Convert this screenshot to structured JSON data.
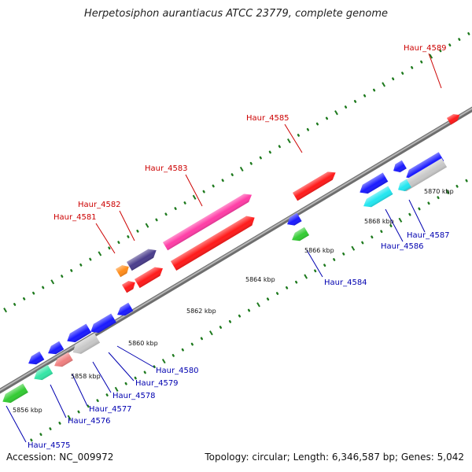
{
  "title": "Herpetosiphon aurantiacus ATCC 23779, complete genome",
  "footer": {
    "accession": "Accession: NC_009972",
    "topology": "Topology: circular; Length: 6,346,587 bp; Genes: 5,042"
  },
  "colors": {
    "backbone": "#8a8a8a",
    "tick": "#1e7a1e",
    "label_forward": "#cc0000",
    "label_reverse": "#0000b0"
  },
  "scale_labels": [
    "5856 kbp",
    "5858 kbp",
    "5860 kbp",
    "5862 kbp",
    "5864 kbp",
    "5866 kbp",
    "5868 kbp",
    "5870 kbp"
  ],
  "gene_labels": {
    "forward": [
      "Haur_4581",
      "Haur_4582",
      "Haur_4583",
      "Haur_4585",
      "Haur_4589"
    ],
    "reverse": [
      "Haur_4575",
      "Haur_4576",
      "Haur_4577",
      "Haur_4578",
      "Haur_4579",
      "Haur_4580",
      "Haur_4584",
      "Haur_4586",
      "Haur_4587"
    ]
  },
  "features": [
    {
      "name": "Haur_4589",
      "strand": "forward",
      "color": "#ff1a1a"
    },
    {
      "name": "Haur_4585",
      "strand": "forward",
      "color": "#ff1a1a"
    },
    {
      "name": "Haur_4583",
      "strand": "forward",
      "color": "#ff3ca6"
    },
    {
      "name": "Haur_4583-b",
      "strand": "forward",
      "color": "#ff1a1a"
    },
    {
      "name": "Haur_4582",
      "strand": "forward",
      "color": "#4a3d8c"
    },
    {
      "name": "Haur_4582-b",
      "strand": "forward",
      "color": "#ff1a1a"
    },
    {
      "name": "Haur_4581",
      "strand": "forward",
      "color": "#ff8c1a"
    },
    {
      "name": "Haur_4581-b",
      "strand": "forward",
      "color": "#ff1a1a"
    },
    {
      "name": "Haur_4587",
      "strand": "reverse",
      "color": "#1a1aff"
    },
    {
      "name": "Haur_4587-b",
      "strand": "reverse",
      "color": "#c8c8c8"
    },
    {
      "name": "Haur_4586",
      "strand": "reverse",
      "color": "#1a1aff"
    },
    {
      "name": "Haur_4586-b",
      "strand": "reverse",
      "color": "#22e6f0"
    },
    {
      "name": "Haur_4586-c",
      "strand": "reverse",
      "color": "#1a1aff"
    },
    {
      "name": "Haur_4586-d",
      "strand": "reverse",
      "color": "#22e6f0"
    },
    {
      "name": "Haur_4584",
      "strand": "reverse",
      "color": "#1a1aff"
    },
    {
      "name": "Haur_4584-b",
      "strand": "reverse",
      "color": "#33cc33"
    },
    {
      "name": "Haur_4580",
      "strand": "reverse",
      "color": "#1a1aff"
    },
    {
      "name": "Haur_4579",
      "strand": "reverse",
      "color": "#1a1aff"
    },
    {
      "name": "Haur_4578",
      "strand": "reverse",
      "color": "#c8c8c8"
    },
    {
      "name": "Haur_4578-b",
      "strand": "reverse",
      "color": "#1a1aff"
    },
    {
      "name": "Haur_4577",
      "strand": "reverse",
      "color": "#f08080"
    },
    {
      "name": "Haur_4577-b",
      "strand": "reverse",
      "color": "#1a1aff"
    },
    {
      "name": "Haur_4576",
      "strand": "reverse",
      "color": "#33e6a6"
    },
    {
      "name": "Haur_4575",
      "strand": "reverse",
      "color": "#1a1aff"
    },
    {
      "name": "Haur_4575-b",
      "strand": "reverse",
      "color": "#33cc33"
    }
  ]
}
